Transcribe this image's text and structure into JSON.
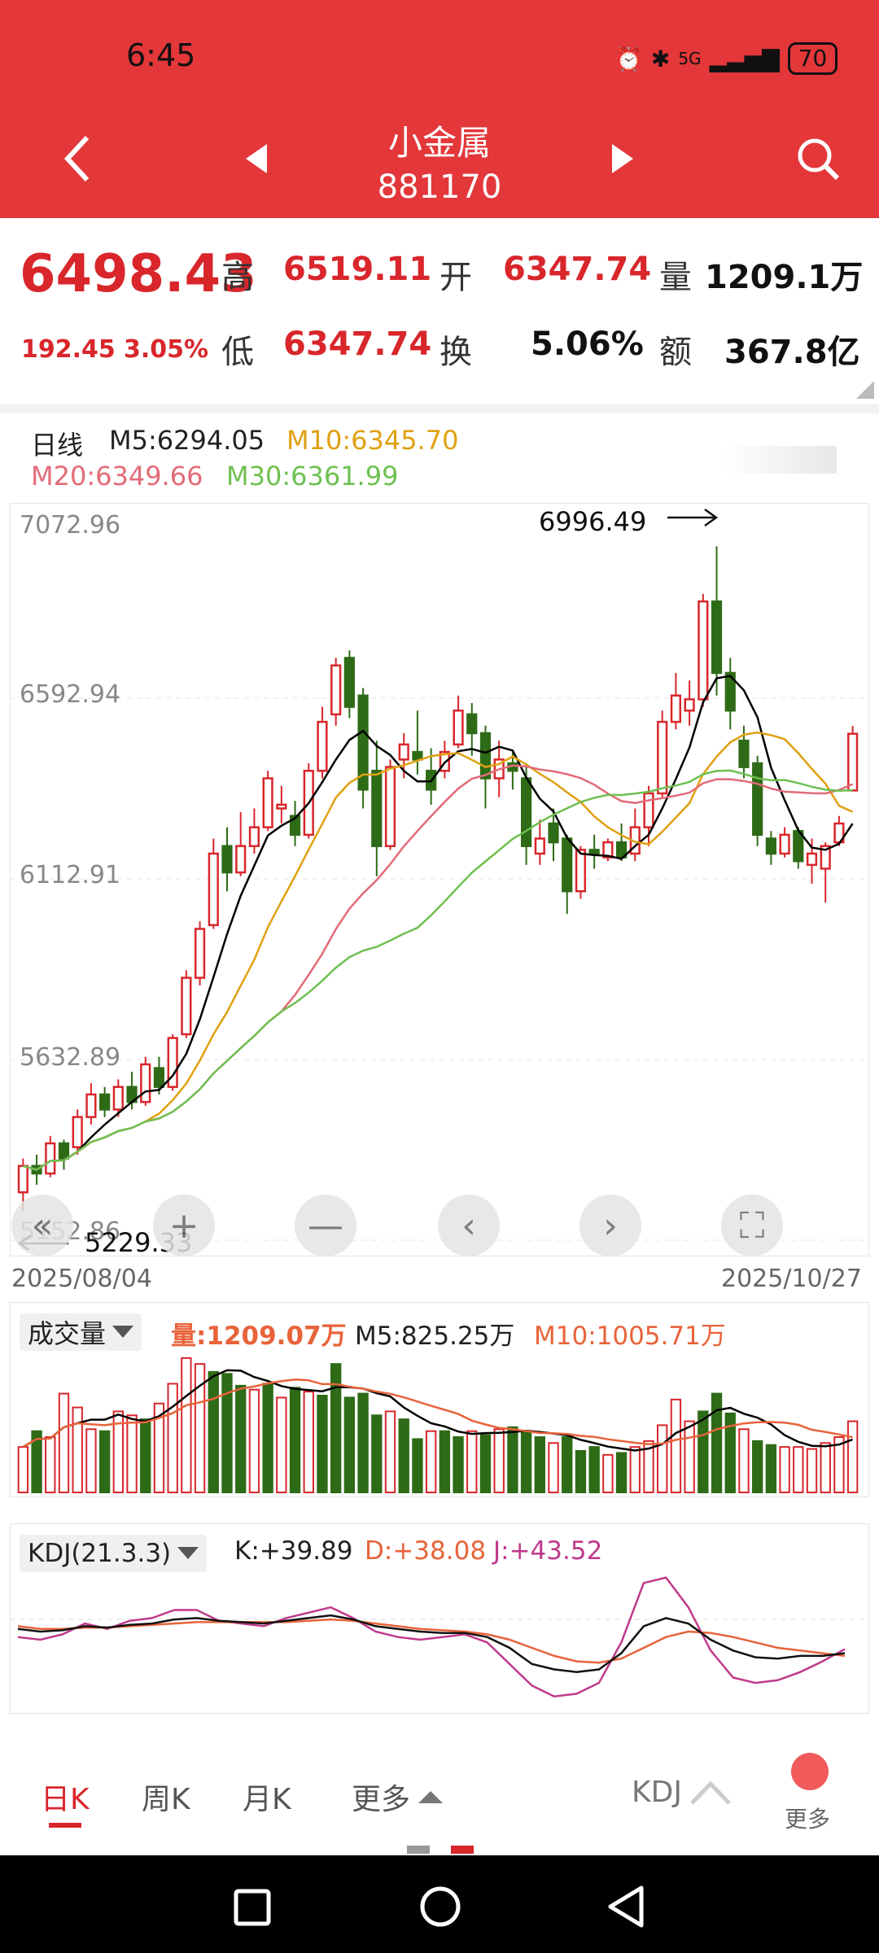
{
  "status": {
    "time": "6:45",
    "network": "5G",
    "battery": "70"
  },
  "nav": {
    "title": "小金属",
    "code": "881170"
  },
  "quote": {
    "price": "6498.43",
    "change": "192.45",
    "change_pct": "3.05%",
    "high_label": "高",
    "high": "6519.11",
    "low_label": "低",
    "low": "6347.74",
    "open_label": "开",
    "open": "6347.74",
    "turnover_label": "换",
    "turnover": "5.06%",
    "volume_label": "量",
    "volume": "1209.1万",
    "amount_label": "额",
    "amount": "367.8亿"
  },
  "ma": {
    "period": "日线",
    "m5": "M5:6294.05",
    "m10": "M10:6345.70",
    "m20": "M20:6349.66",
    "m30": "M30:6361.99"
  },
  "colors": {
    "up": "#d8262b",
    "down": "#2e6b17",
    "m5": "#000000",
    "m10": "#e0a010",
    "m20": "#e36b78",
    "m30": "#6ec050"
  },
  "chart": {
    "y_labels": [
      "7072.96",
      "6592.94",
      "6112.91",
      "5632.89",
      "5152.86"
    ],
    "max_label": "6996.49",
    "min_label": "5229.33",
    "date_start": "2025/08/04",
    "date_end": "2025/10/27"
  },
  "chart_controls": {
    "back": "«",
    "zoom_in": "+",
    "zoom_out": "—",
    "prev": "‹",
    "next": "›",
    "fullscreen": "⛶"
  },
  "volume": {
    "selector": "成交量",
    "vol": "量:1209.07万",
    "m5": "M5:825.25万",
    "m10": "M10:1005.71万"
  },
  "kdj": {
    "selector": "KDJ(21.3.3)",
    "k": "K:+39.89",
    "d": "D:+38.08",
    "j": "J:+43.52"
  },
  "tabs": {
    "day": "日K",
    "week": "周K",
    "month": "月K",
    "more": "更多",
    "indicator": "KDJ",
    "more_btn": "更多"
  },
  "chart_data": {
    "type": "candlestick",
    "x_range": [
      "2025/08/04",
      "2025/10/27"
    ],
    "ylim": [
      5152.86,
      7072.96
    ],
    "max_point": 6996.49,
    "min_point": 5229.33,
    "candles": [
      [
        5280,
        5350,
        5230,
        5370
      ],
      [
        5350,
        5330,
        5300,
        5380
      ],
      [
        5330,
        5410,
        5320,
        5430
      ],
      [
        5410,
        5370,
        5340,
        5420
      ],
      [
        5400,
        5480,
        5380,
        5500
      ],
      [
        5480,
        5540,
        5460,
        5570
      ],
      [
        5540,
        5500,
        5480,
        5560
      ],
      [
        5500,
        5560,
        5480,
        5580
      ],
      [
        5560,
        5520,
        5500,
        5600
      ],
      [
        5520,
        5620,
        5510,
        5640
      ],
      [
        5610,
        5560,
        5540,
        5640
      ],
      [
        5560,
        5690,
        5550,
        5700
      ],
      [
        5700,
        5850,
        5690,
        5870
      ],
      [
        5850,
        5980,
        5830,
        6000
      ],
      [
        5990,
        6180,
        5980,
        6220
      ],
      [
        6200,
        6130,
        6080,
        6250
      ],
      [
        6130,
        6200,
        6120,
        6290
      ],
      [
        6200,
        6250,
        6180,
        6300
      ],
      [
        6250,
        6380,
        6240,
        6400
      ],
      [
        6300,
        6310,
        6260,
        6360
      ],
      [
        6280,
        6230,
        6200,
        6320
      ],
      [
        6230,
        6400,
        6220,
        6420
      ],
      [
        6400,
        6530,
        6380,
        6570
      ],
      [
        6550,
        6680,
        6520,
        6700
      ],
      [
        6700,
        6570,
        6540,
        6720
      ],
      [
        6600,
        6350,
        6300,
        6620
      ],
      [
        6400,
        6200,
        6120,
        6480
      ],
      [
        6200,
        6410,
        6190,
        6430
      ],
      [
        6430,
        6470,
        6380,
        6500
      ],
      [
        6450,
        6430,
        6390,
        6560
      ],
      [
        6400,
        6350,
        6310,
        6460
      ],
      [
        6400,
        6450,
        6380,
        6480
      ],
      [
        6470,
        6560,
        6460,
        6600
      ],
      [
        6550,
        6500,
        6440,
        6580
      ],
      [
        6500,
        6380,
        6300,
        6520
      ],
      [
        6380,
        6430,
        6330,
        6480
      ],
      [
        6420,
        6400,
        6350,
        6450
      ],
      [
        6380,
        6200,
        6150,
        6420
      ],
      [
        6180,
        6220,
        6150,
        6270
      ],
      [
        6260,
        6210,
        6160,
        6300
      ],
      [
        6220,
        6080,
        6020,
        6230
      ],
      [
        6080,
        6190,
        6060,
        6200
      ],
      [
        6190,
        6180,
        6140,
        6230
      ],
      [
        6170,
        6210,
        6160,
        6220
      ],
      [
        6210,
        6170,
        6160,
        6260
      ],
      [
        6180,
        6250,
        6160,
        6300
      ],
      [
        6250,
        6340,
        6200,
        6360
      ],
      [
        6340,
        6530,
        6330,
        6560
      ],
      [
        6530,
        6600,
        6510,
        6660
      ],
      [
        6560,
        6590,
        6520,
        6640
      ],
      [
        6590,
        6850,
        6570,
        6870
      ],
      [
        6850,
        6660,
        6600,
        6996.49
      ],
      [
        6660,
        6560,
        6510,
        6700
      ],
      [
        6480,
        6410,
        6380,
        6520
      ],
      [
        6420,
        6230,
        6200,
        6440
      ],
      [
        6220,
        6180,
        6150,
        6240
      ],
      [
        6180,
        6230,
        6170,
        6250
      ],
      [
        6240,
        6160,
        6140,
        6250
      ],
      [
        6150,
        6180,
        6100,
        6220
      ],
      [
        6140,
        6200,
        6050,
        6210
      ],
      [
        6210,
        6260,
        6200,
        6280
      ],
      [
        6347.74,
        6498.43,
        6347.74,
        6519.11
      ]
    ],
    "volume_bars": [
      [
        460,
        1
      ],
      [
        620,
        0
      ],
      [
        560,
        1
      ],
      [
        1000,
        1
      ],
      [
        860,
        1
      ],
      [
        640,
        1
      ],
      [
        620,
        0
      ],
      [
        820,
        1
      ],
      [
        780,
        1
      ],
      [
        740,
        0
      ],
      [
        900,
        1
      ],
      [
        1100,
        1
      ],
      [
        1360,
        1
      ],
      [
        1300,
        1
      ],
      [
        1220,
        0
      ],
      [
        1200,
        0
      ],
      [
        1080,
        0
      ],
      [
        1040,
        1
      ],
      [
        1100,
        0
      ],
      [
        960,
        1
      ],
      [
        1060,
        0
      ],
      [
        1020,
        1
      ],
      [
        980,
        0
      ],
      [
        1300,
        0
      ],
      [
        960,
        0
      ],
      [
        1000,
        0
      ],
      [
        780,
        0
      ],
      [
        820,
        1
      ],
      [
        740,
        0
      ],
      [
        540,
        0
      ],
      [
        620,
        1
      ],
      [
        620,
        0
      ],
      [
        560,
        0
      ],
      [
        620,
        1
      ],
      [
        580,
        0
      ],
      [
        640,
        1
      ],
      [
        660,
        0
      ],
      [
        620,
        0
      ],
      [
        560,
        0
      ],
      [
        500,
        1
      ],
      [
        560,
        0
      ],
      [
        420,
        0
      ],
      [
        460,
        0
      ],
      [
        380,
        1
      ],
      [
        400,
        0
      ],
      [
        460,
        1
      ],
      [
        520,
        1
      ],
      [
        680,
        1
      ],
      [
        940,
        1
      ],
      [
        720,
        1
      ],
      [
        820,
        0
      ],
      [
        1000,
        0
      ],
      [
        800,
        0
      ],
      [
        640,
        1
      ],
      [
        520,
        0
      ],
      [
        480,
        0
      ],
      [
        460,
        1
      ],
      [
        460,
        1
      ],
      [
        440,
        1
      ],
      [
        500,
        1
      ],
      [
        560,
        1
      ],
      [
        720,
        1
      ]
    ],
    "kdj": {
      "K": [
        58,
        56,
        57,
        60,
        59,
        61,
        62,
        65,
        66,
        64,
        63,
        62,
        64,
        66,
        68,
        65,
        60,
        58,
        56,
        55,
        55,
        52,
        44,
        32,
        28,
        26,
        28,
        40,
        60,
        66,
        62,
        50,
        42,
        37,
        36,
        38,
        38,
        40
      ],
      "D": [
        60,
        58,
        58,
        59,
        59,
        60,
        61,
        62,
        63,
        63,
        63,
        63,
        63,
        64,
        65,
        64,
        62,
        60,
        58,
        57,
        56,
        54,
        50,
        44,
        38,
        34,
        33,
        36,
        44,
        52,
        56,
        55,
        52,
        48,
        44,
        42,
        40,
        38
      ],
      "J": [
        52,
        50,
        54,
        62,
        58,
        64,
        66,
        72,
        72,
        64,
        62,
        60,
        66,
        70,
        74,
        66,
        56,
        52,
        50,
        52,
        54,
        48,
        32,
        16,
        8,
        10,
        18,
        48,
        92,
        96,
        74,
        42,
        22,
        18,
        20,
        26,
        34,
        43
      ]
    }
  }
}
